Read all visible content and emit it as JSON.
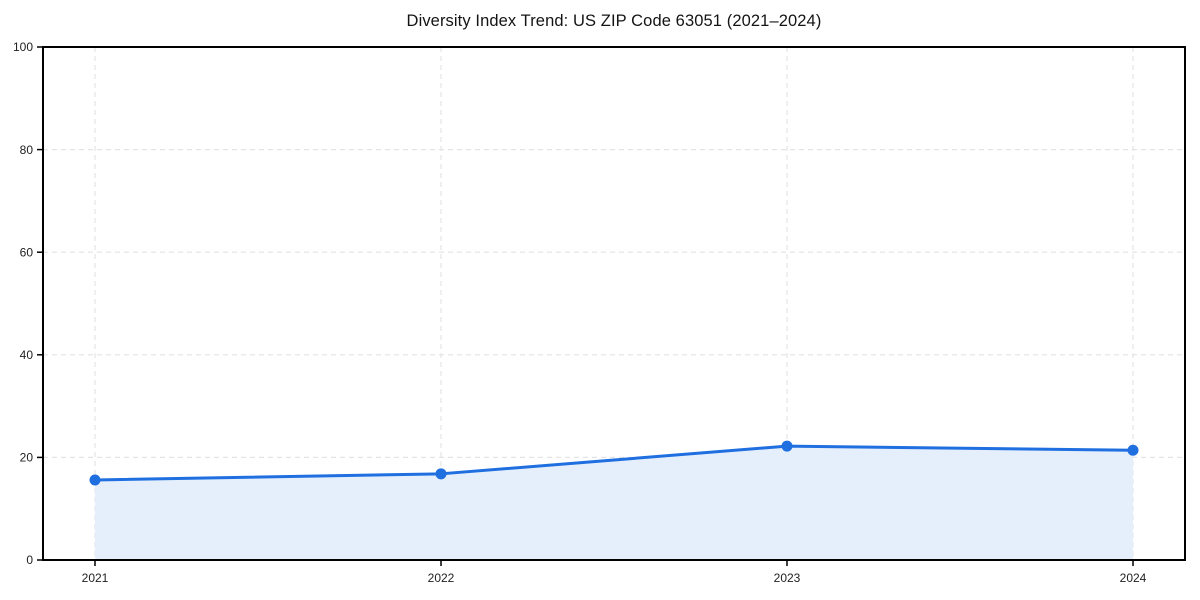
{
  "chart_data": {
    "type": "area",
    "title": "Diversity Index Trend: US ZIP Code 63051 (2021–2024)",
    "categories": [
      "2021",
      "2022",
      "2023",
      "2024"
    ],
    "series": [
      {
        "name": "Diversity Index",
        "values": [
          15.6,
          16.8,
          22.2,
          21.4
        ]
      }
    ],
    "xlabel": "",
    "ylabel": "",
    "ylim": [
      0,
      100
    ],
    "yticks": [
      0,
      20,
      40,
      60,
      80,
      100
    ],
    "grid": "dashed-both-axes",
    "legend": "none",
    "colors": {
      "line": "#1f6fe0",
      "marker": "#1f6fe0",
      "fill": "#e5eefb",
      "gridline": "#e4e4e4",
      "axis": "#000000",
      "tick_text": "#222222",
      "background": "#ffffff"
    }
  }
}
